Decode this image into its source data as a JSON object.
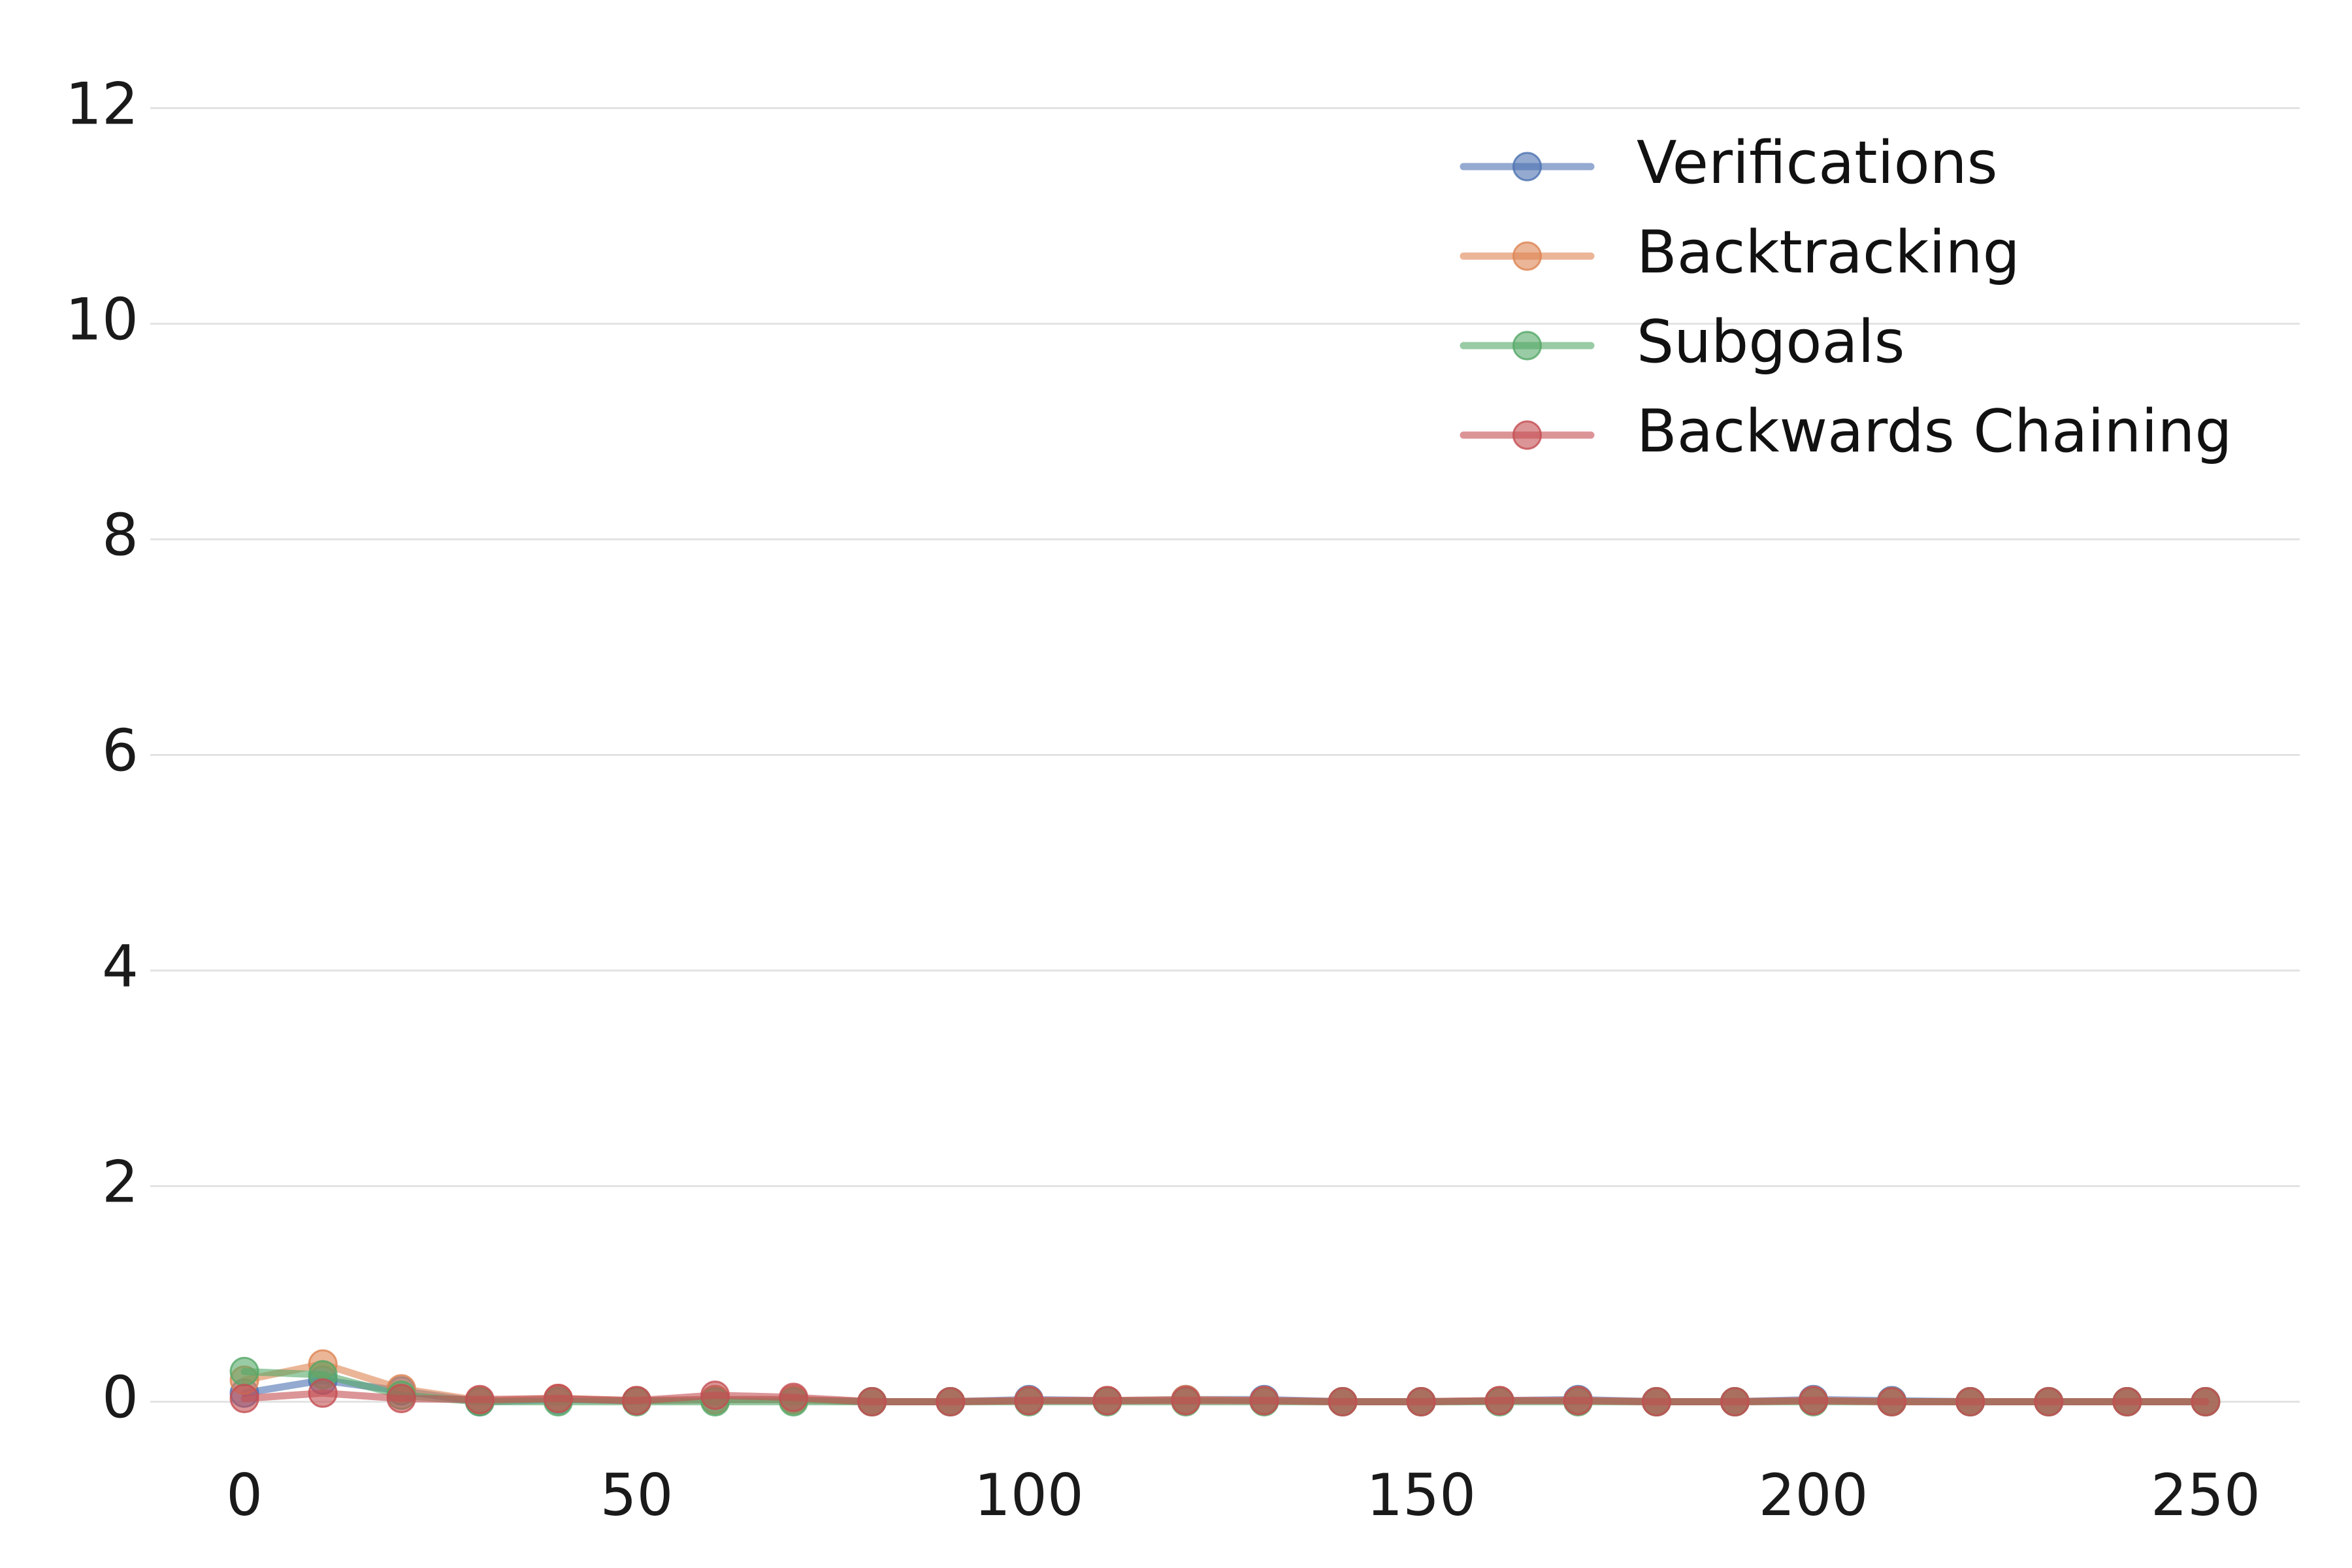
{
  "chart_data": {
    "type": "line",
    "title": "",
    "xlabel": "",
    "ylabel": "",
    "xlim": [
      -12,
      262
    ],
    "ylim": [
      -0.3,
      12.7
    ],
    "xticks": [
      0,
      50,
      100,
      150,
      200,
      250
    ],
    "yticks": [
      0,
      2,
      4,
      6,
      8,
      10,
      12
    ],
    "grid": "horizontal",
    "legend_position": "top-right",
    "x": [
      0,
      10,
      20,
      30,
      40,
      50,
      60,
      70,
      80,
      90,
      100,
      110,
      120,
      130,
      140,
      150,
      160,
      170,
      180,
      190,
      200,
      210,
      220,
      230,
      240,
      250
    ],
    "series": [
      {
        "name": "Verifications",
        "color": "#4c72b0",
        "values": [
          0.08,
          0.2,
          0.1,
          0.0,
          0.02,
          0.01,
          0.02,
          0.02,
          0.0,
          0.0,
          0.02,
          0.01,
          0.02,
          0.02,
          0.0,
          0.0,
          0.01,
          0.02,
          0.0,
          0.0,
          0.02,
          0.01,
          0.0,
          0.0,
          0.0,
          0.0
        ]
      },
      {
        "name": "Backtracking",
        "color": "#dd8452",
        "values": [
          0.2,
          0.35,
          0.12,
          0.01,
          0.03,
          0.01,
          0.02,
          0.02,
          0.0,
          0.0,
          0.01,
          0.01,
          0.02,
          0.01,
          0.0,
          0.0,
          0.01,
          0.01,
          0.0,
          0.0,
          0.01,
          0.0,
          0.0,
          0.0,
          0.0,
          0.0
        ]
      },
      {
        "name": "Subgoals",
        "color": "#55a868",
        "values": [
          0.28,
          0.25,
          0.06,
          0.0,
          0.0,
          0.0,
          0.0,
          0.0,
          0.0,
          0.0,
          0.0,
          0.0,
          0.0,
          0.0,
          0.0,
          0.0,
          0.0,
          0.0,
          0.0,
          0.0,
          0.0,
          0.0,
          0.0,
          0.0,
          0.0,
          0.0
        ]
      },
      {
        "name": "Backwards Chaining",
        "color": "#c44e52",
        "values": [
          0.03,
          0.08,
          0.03,
          0.02,
          0.03,
          0.01,
          0.06,
          0.04,
          0.0,
          0.0,
          0.01,
          0.01,
          0.01,
          0.01,
          0.0,
          0.0,
          0.01,
          0.01,
          0.0,
          0.0,
          0.01,
          0.0,
          0.0,
          0.0,
          0.0,
          0.0
        ]
      }
    ]
  }
}
